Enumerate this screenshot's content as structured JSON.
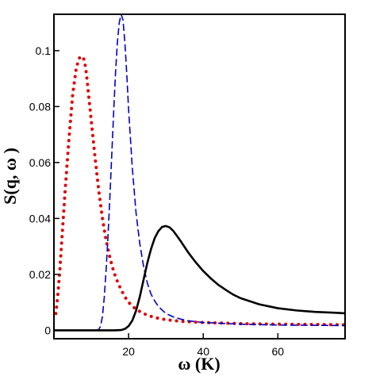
{
  "chart_data": {
    "type": "line",
    "title": "",
    "xlabel": "ω (K)",
    "ylabel": "S(q, ω )",
    "xlim": [
      0,
      78
    ],
    "ylim": [
      -0.003,
      0.113
    ],
    "grid": false,
    "legend": "none",
    "xticks": [
      {
        "value": 20,
        "label": "20"
      },
      {
        "value": 40,
        "label": "40"
      },
      {
        "value": 60,
        "label": "60"
      }
    ],
    "yticks": [
      {
        "value": 0,
        "label": "0"
      },
      {
        "value": 0.02,
        "label": "0.02"
      },
      {
        "value": 0.04,
        "label": "0.04"
      },
      {
        "value": 0.06,
        "label": "0.06"
      },
      {
        "value": 0.08,
        "label": "0.08"
      },
      {
        "value": 0.1,
        "label": "0.1"
      }
    ],
    "series": [
      {
        "style": "dotted",
        "color": "#e00000",
        "x": [
          0.5,
          1.0,
          1.5,
          2.0,
          3.0,
          4.0,
          5.0,
          6.0,
          7.0,
          8.0,
          8.5,
          9.0,
          10.0,
          11.0,
          12.0,
          13.0,
          14.0,
          15.0,
          16.0,
          17.0,
          18.0,
          19.0,
          20.0,
          22.0,
          24.0,
          26.0,
          28.0,
          30.0,
          34.0,
          40.0,
          50.0,
          60.0,
          70.0,
          78.0
        ],
        "y": [
          0.006,
          0.012,
          0.02,
          0.03,
          0.05,
          0.068,
          0.084,
          0.094,
          0.098,
          0.097,
          0.094,
          0.088,
          0.075,
          0.062,
          0.05,
          0.04,
          0.032,
          0.026,
          0.021,
          0.0175,
          0.0145,
          0.012,
          0.01,
          0.0075,
          0.006,
          0.005,
          0.0043,
          0.0038,
          0.0032,
          0.0028,
          0.0024,
          0.0022,
          0.0021,
          0.002
        ]
      },
      {
        "style": "dashed",
        "color": "#0000c8",
        "x": [
          0.0,
          10.0,
          11.0,
          12.0,
          12.5,
          13.0,
          13.5,
          14.0,
          14.5,
          15.0,
          15.5,
          16.0,
          16.5,
          17.0,
          17.5,
          18.0,
          18.5,
          19.0,
          19.5,
          20.0,
          21.0,
          22.0,
          23.0,
          24.0,
          25.0,
          26.0,
          27.0,
          28.0,
          30.0,
          32.0,
          34.0,
          36.0,
          40.0,
          50.0,
          60.0,
          70.0,
          78.0
        ],
        "y": [
          0,
          0,
          0,
          0.0003,
          0.0015,
          0.005,
          0.012,
          0.022,
          0.034,
          0.048,
          0.063,
          0.078,
          0.092,
          0.103,
          0.11,
          0.113,
          0.111,
          0.103,
          0.092,
          0.079,
          0.058,
          0.042,
          0.031,
          0.023,
          0.017,
          0.013,
          0.0105,
          0.0085,
          0.006,
          0.0048,
          0.004,
          0.0034,
          0.0028,
          0.0022,
          0.0019,
          0.0018,
          0.0017
        ]
      },
      {
        "style": "solid",
        "color": "#000000",
        "x": [
          0.0,
          10.0,
          16.0,
          18.0,
          19.0,
          20.0,
          21.0,
          22.0,
          23.0,
          24.0,
          25.0,
          26.0,
          27.0,
          28.0,
          29.0,
          30.0,
          31.0,
          32.0,
          33.0,
          34.0,
          35.0,
          36.0,
          38.0,
          40.0,
          42.0,
          44.0,
          46.0,
          48.0,
          50.0,
          55.0,
          60.0,
          65.0,
          70.0,
          75.0,
          78.0
        ],
        "y": [
          0,
          0,
          0,
          0.0001,
          0.0005,
          0.0015,
          0.0035,
          0.007,
          0.012,
          0.018,
          0.024,
          0.029,
          0.033,
          0.0355,
          0.037,
          0.0373,
          0.0368,
          0.0355,
          0.0337,
          0.0318,
          0.0298,
          0.0278,
          0.0243,
          0.0212,
          0.0186,
          0.0163,
          0.0145,
          0.0128,
          0.0115,
          0.0093,
          0.0079,
          0.0071,
          0.0066,
          0.0063,
          0.0061
        ]
      }
    ]
  }
}
